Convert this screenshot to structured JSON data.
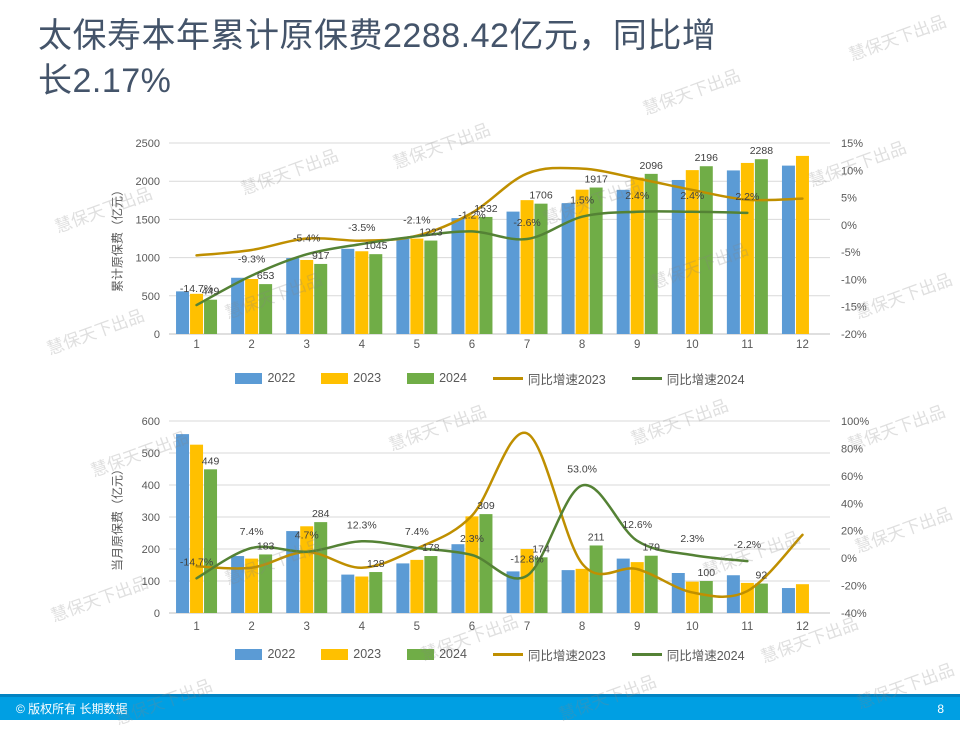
{
  "title": "太保寿本年累计原保费2288.42亿元，同比增长2.17%",
  "watermark": "慧保天下出品",
  "footer": {
    "copyright": "© 版权所有 长期数据",
    "page": "8"
  },
  "colors": {
    "bar_2022": "#5B9BD5",
    "bar_2023": "#FFC000",
    "bar_2024": "#70AD47",
    "line_2023": "#BF8F00",
    "line_2024": "#548235",
    "title_text": "#44546A",
    "footer_bg": "#009FE3"
  },
  "legend": {
    "items": [
      {
        "label": "2022",
        "color": "#5B9BD5",
        "type": "swatch"
      },
      {
        "label": "2023",
        "color": "#FFC000",
        "type": "swatch"
      },
      {
        "label": "2024",
        "color": "#70AD47",
        "type": "swatch"
      },
      {
        "label": "同比增速2023",
        "color": "#BF8F00",
        "type": "line"
      },
      {
        "label": "同比增速2024",
        "color": "#548235",
        "type": "line"
      }
    ]
  },
  "chart_data": [
    {
      "name": "cumulative-premium",
      "type": "bar+line",
      "ylabel": "累计原保费（亿元）",
      "categories": [
        "1",
        "2",
        "3",
        "4",
        "5",
        "6",
        "7",
        "8",
        "9",
        "10",
        "11",
        "12"
      ],
      "left_axis": {
        "min": 0,
        "max": 2500,
        "step": 500
      },
      "right_axis": {
        "min": -20,
        "max": 15,
        "step": 5,
        "format": "%"
      },
      "grid": true,
      "legend_position": "bottom",
      "series": [
        {
          "name": "2022",
          "type": "bar",
          "color": "#5B9BD5",
          "values": [
            558,
            736,
            994,
            1115,
            1246,
            1517,
            1602,
            1713,
            1887,
            2016,
            2141,
            2204
          ]
        },
        {
          "name": "2023",
          "type": "bar",
          "color": "#FFC000",
          "values": [
            526,
            720,
            969,
            1083,
            1249,
            1551,
            1752,
            1889,
            2047,
            2145,
            2239,
            2331
          ]
        },
        {
          "name": "2024",
          "type": "bar",
          "color": "#70AD47",
          "values": [
            449,
            653,
            917,
            1045,
            1223,
            1532,
            1706,
            1917,
            2096,
            2196,
            2288,
            null
          ]
        },
        {
          "name": "同比增速2023",
          "type": "line",
          "axis": "right",
          "color": "#BF8F00",
          "values": [
            -5.6,
            -4.6,
            -2.5,
            -2.9,
            -2.0,
            2.2,
            9.4,
            10.3,
            8.5,
            6.4,
            4.6,
            4.8
          ]
        },
        {
          "name": "同比增速2024",
          "type": "line",
          "axis": "right",
          "color": "#548235",
          "values": [
            -14.7,
            -9.3,
            -5.4,
            -3.5,
            -2.1,
            -1.2,
            -2.6,
            1.5,
            2.4,
            2.4,
            2.2,
            null
          ]
        }
      ],
      "value_labels": [
        "449",
        "653",
        "917",
        "1045",
        "1223",
        "1532",
        "1706",
        "1917",
        "2096",
        "2196",
        "2288",
        ""
      ],
      "pct_labels": [
        "-14.7%",
        "-9.3%",
        "-5.4%",
        "-3.5%",
        "-2.1%",
        "-1.2%",
        "-2.6%",
        "1.5%",
        "2.4%",
        "2.4%",
        "2.2%",
        ""
      ]
    },
    {
      "name": "monthly-premium",
      "type": "bar+line",
      "ylabel": "当月原保费（亿元）",
      "categories": [
        "1",
        "2",
        "3",
        "4",
        "5",
        "6",
        "7",
        "8",
        "9",
        "10",
        "11",
        "12"
      ],
      "left_axis": {
        "min": 0,
        "max": 600,
        "step": 100
      },
      "right_axis": {
        "min": -40,
        "max": 100,
        "step": 20,
        "format": "%"
      },
      "grid": true,
      "legend_position": "bottom",
      "series": [
        {
          "name": "2022",
          "type": "bar",
          "color": "#5B9BD5",
          "values": [
            559,
            178,
            256,
            120,
            155,
            215,
            130,
            134,
            170,
            125,
            118,
            78
          ]
        },
        {
          "name": "2023",
          "type": "bar",
          "color": "#FFC000",
          "values": [
            526,
            170,
            271,
            114,
            166,
            302,
            200,
            138,
            159,
            98,
            94,
            90
          ]
        },
        {
          "name": "2024",
          "type": "bar",
          "color": "#70AD47",
          "values": [
            449,
            183,
            284,
            128,
            178,
            309,
            174,
            211,
            179,
            100,
            92,
            null
          ]
        },
        {
          "name": "同比增速2023",
          "type": "line",
          "axis": "right",
          "color": "#BF8F00",
          "values": [
            -5.9,
            -7.0,
            4.5,
            -7.0,
            7.0,
            31.0,
            91.0,
            -4.0,
            -8.0,
            -25.0,
            -24.0,
            17.0
          ]
        },
        {
          "name": "同比增速2024",
          "type": "line",
          "axis": "right",
          "color": "#548235",
          "values": [
            -14.7,
            7.4,
            4.7,
            12.3,
            7.4,
            2.3,
            -12.8,
            53.0,
            12.6,
            2.3,
            -2.2,
            null
          ]
        }
      ],
      "value_labels": [
        "449",
        "183",
        "284",
        "128",
        "178",
        "309",
        "174",
        "211",
        "179",
        "100",
        "92",
        ""
      ],
      "pct_labels": [
        "-14.7%",
        "7.4%",
        "4.7%",
        "12.3%",
        "7.4%",
        "2.3%",
        "-12.8%",
        "53.0%",
        "12.6%",
        "2.3%",
        "-2.2%",
        ""
      ]
    }
  ]
}
